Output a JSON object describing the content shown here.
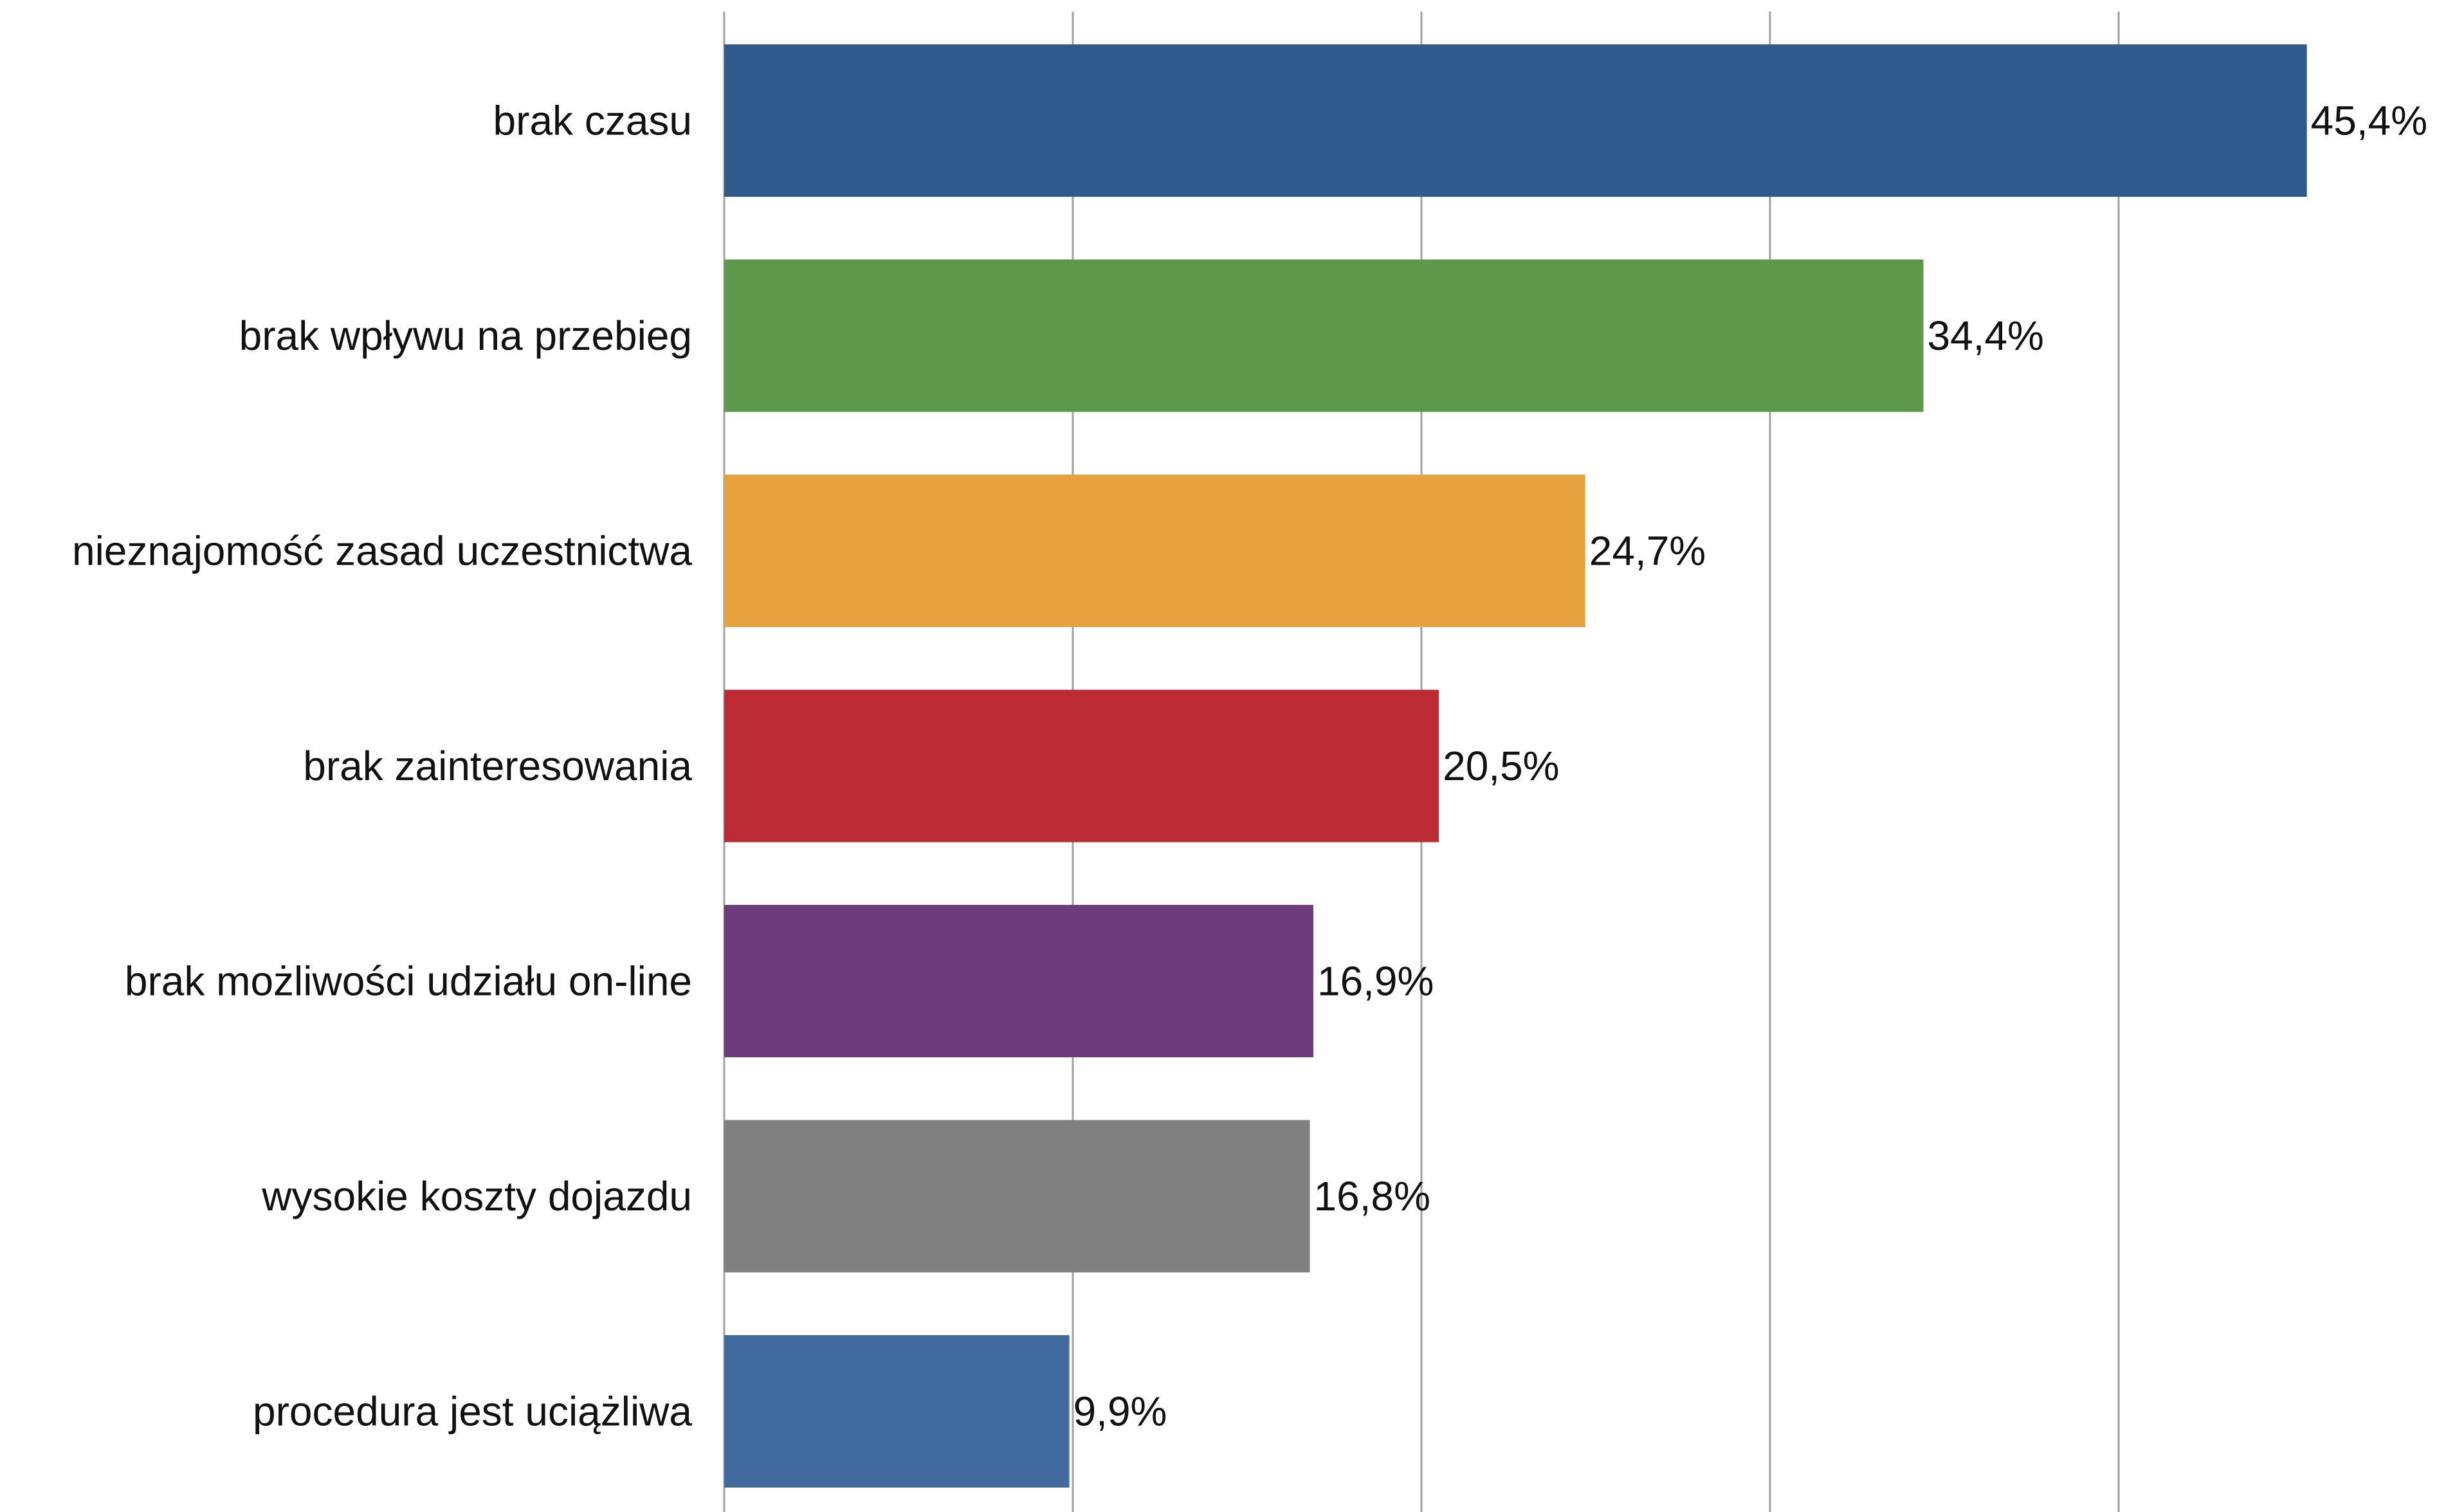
{
  "chart_data": {
    "type": "bar",
    "orientation": "horizontal",
    "title": "",
    "xlabel": "",
    "ylabel": "",
    "xlim": [
      0,
      50
    ],
    "grid": true,
    "legend": "none",
    "categories": [
      "brak czasu",
      "brak wpływu na przebieg",
      "nieznajomość zasad uczestnictwa",
      "brak zainteresowania",
      "brak możliwości udziału on-line",
      "wysokie koszty dojazdu",
      "procedura jest uciążliwa"
    ],
    "values": [
      45.4,
      34.4,
      24.7,
      20.5,
      16.9,
      16.8,
      9.9
    ],
    "value_labels": [
      "45,4%",
      "34,4%",
      "24,7%",
      "20,5%",
      "16,9%",
      "16,8%",
      "9,9%"
    ],
    "colors": [
      "#2e5a8c",
      "#5e984b",
      "#e6a23d",
      "#ba2b33",
      "#6f3c7b",
      "#7f807f",
      "#416b9e"
    ]
  }
}
